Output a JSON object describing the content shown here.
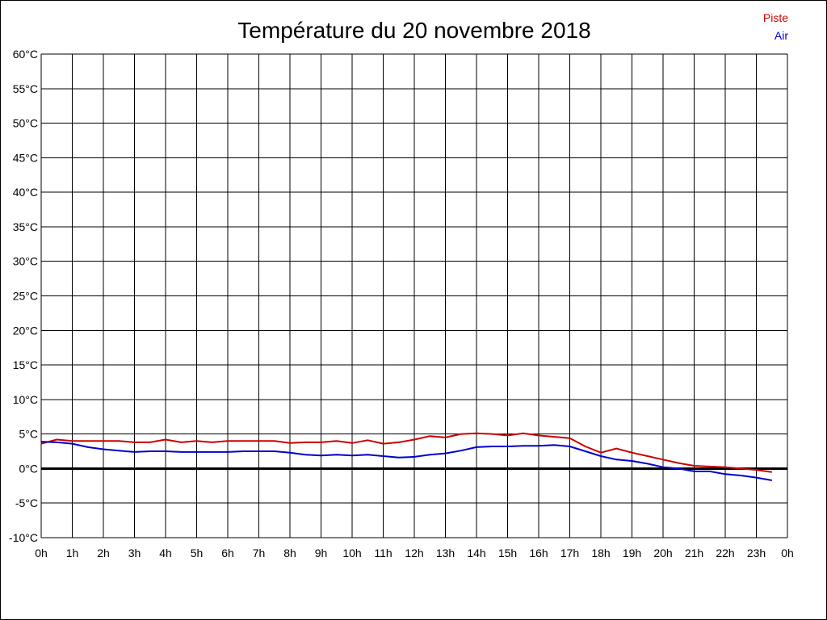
{
  "chart_data": {
    "type": "line",
    "title": "Température du 20 novembre 2018",
    "x_tick_labels": [
      "0h",
      "1h",
      "2h",
      "3h",
      "4h",
      "5h",
      "6h",
      "7h",
      "8h",
      "9h",
      "10h",
      "11h",
      "12h",
      "13h",
      "14h",
      "15h",
      "16h",
      "17h",
      "18h",
      "19h",
      "20h",
      "21h",
      "22h",
      "23h",
      "0h"
    ],
    "y_tick_labels": [
      "60°C",
      "55°C",
      "50°C",
      "45°C",
      "40°C",
      "35°C",
      "30°C",
      "25°C",
      "20°C",
      "15°C",
      "10°C",
      "5°C",
      "0°C",
      "-5°C",
      "-10°C"
    ],
    "xlim": [
      0,
      24
    ],
    "ylim": [
      -10,
      60
    ],
    "y_step": 5,
    "grid": true,
    "legend_position": "top-right",
    "zero_line": true,
    "series": [
      {
        "name": "Piste",
        "color": "#cc0000",
        "x": [
          0,
          0.5,
          1,
          1.5,
          2,
          2.5,
          3,
          3.5,
          4,
          4.5,
          5,
          5.5,
          6,
          6.5,
          7,
          7.5,
          8,
          8.5,
          9,
          9.5,
          10,
          10.5,
          11,
          11.5,
          12,
          12.5,
          13,
          13.5,
          14,
          14.5,
          15,
          15.5,
          16,
          16.5,
          17,
          17.5,
          18,
          18.5,
          19,
          19.5,
          20,
          20.5,
          21,
          21.5,
          22,
          22.5,
          23,
          23.5
        ],
        "y": [
          3.6,
          4.2,
          4.0,
          4.0,
          4.0,
          4.0,
          3.8,
          3.8,
          4.2,
          3.8,
          4.0,
          3.8,
          4.0,
          4.0,
          4.0,
          4.0,
          3.7,
          3.8,
          3.8,
          4.0,
          3.7,
          4.1,
          3.6,
          3.8,
          4.2,
          4.7,
          4.5,
          5.0,
          5.1,
          5.0,
          4.8,
          5.1,
          4.8,
          4.6,
          4.4,
          3.2,
          2.3,
          2.9,
          2.3,
          1.8,
          1.3,
          0.8,
          0.4,
          0.3,
          0.2,
          0.0,
          -0.2,
          -0.5
        ]
      },
      {
        "name": "Air",
        "color": "#0000cc",
        "x": [
          0,
          0.5,
          1,
          1.5,
          2,
          2.5,
          3,
          3.5,
          4,
          4.5,
          5,
          5.5,
          6,
          6.5,
          7,
          7.5,
          8,
          8.5,
          9,
          9.5,
          10,
          10.5,
          11,
          11.5,
          12,
          12.5,
          13,
          13.5,
          14,
          14.5,
          15,
          15.5,
          16,
          16.5,
          17,
          17.5,
          18,
          18.5,
          19,
          19.5,
          20,
          20.5,
          21,
          21.5,
          22,
          22.5,
          23,
          23.5
        ],
        "y": [
          3.9,
          3.8,
          3.6,
          3.1,
          2.8,
          2.6,
          2.4,
          2.5,
          2.5,
          2.4,
          2.4,
          2.4,
          2.4,
          2.5,
          2.5,
          2.5,
          2.3,
          2.0,
          1.9,
          2.0,
          1.9,
          2.0,
          1.8,
          1.6,
          1.7,
          2.0,
          2.2,
          2.6,
          3.1,
          3.2,
          3.2,
          3.3,
          3.3,
          3.4,
          3.2,
          2.5,
          1.8,
          1.3,
          1.1,
          0.7,
          0.2,
          0.0,
          -0.4,
          -0.4,
          -0.8,
          -1.0,
          -1.3,
          -1.7
        ]
      }
    ]
  }
}
